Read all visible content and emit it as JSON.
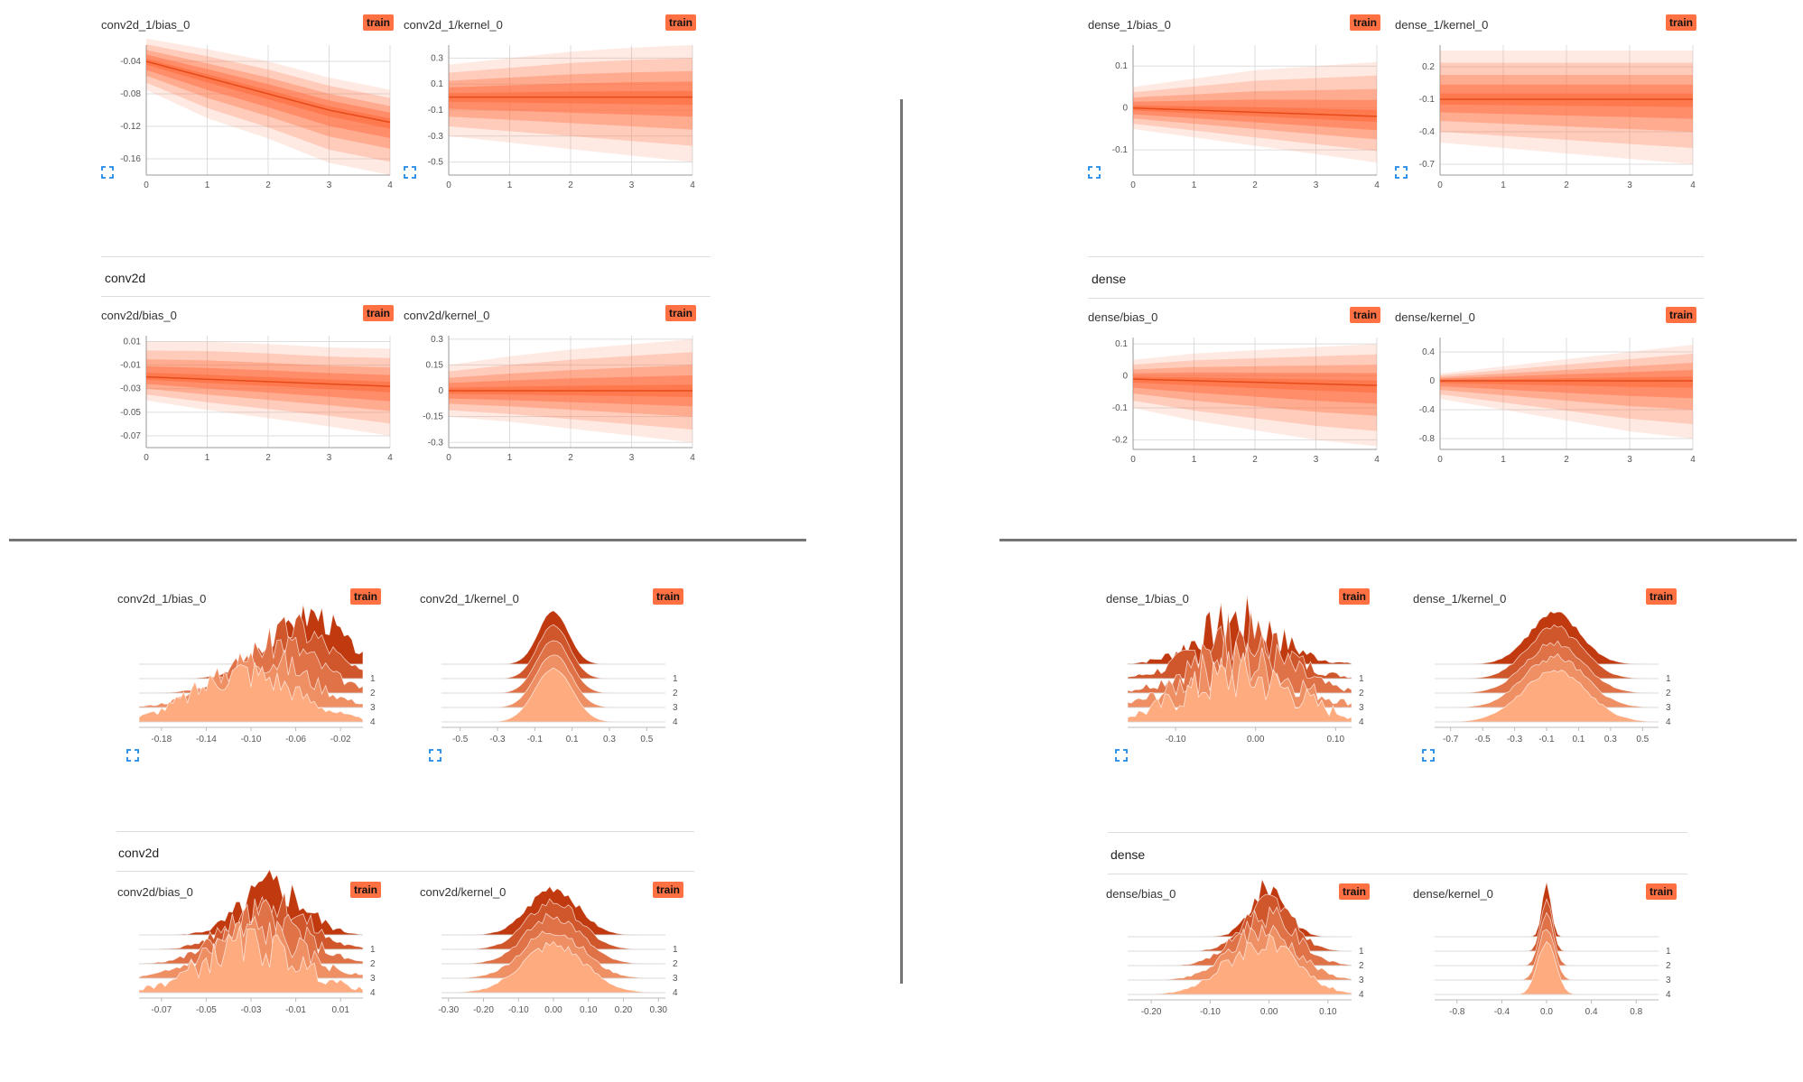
{
  "badge_label": "train",
  "colors": {
    "accent": "#ff7043",
    "dist_fill": "#ff7043",
    "hist_dark": "#c0390f",
    "hist_light": "#ffab80",
    "grid": "#dddddd",
    "tick": "#555555",
    "divider": "#757575"
  },
  "icons": {
    "expand": "fullscreen-expand-icon"
  },
  "sections": {
    "conv2d": "conv2d",
    "dense": "dense"
  },
  "distributions": [
    {
      "title": "conv2d_1/bias_0",
      "y_ticks": [
        "-0.04",
        "-0.08",
        "-0.12",
        "-0.16"
      ],
      "x_ticks": [
        "0",
        "1",
        "2",
        "3",
        "4"
      ],
      "chart_data": {
        "type": "area",
        "x": [
          0,
          1,
          2,
          3,
          4
        ],
        "ylim": [
          -0.18,
          -0.02
        ],
        "median": [
          -0.04,
          -0.06,
          -0.08,
          -0.1,
          -0.115
        ],
        "bands": [
          [
            -0.075,
            -0.012
          ],
          [
            -0.11,
            -0.025
          ],
          [
            -0.135,
            -0.04
          ],
          [
            -0.165,
            -0.06
          ],
          [
            -0.18,
            -0.075
          ]
        ]
      }
    },
    {
      "title": "conv2d_1/kernel_0",
      "y_ticks": [
        "0.3",
        "0.1",
        "-0.1",
        "-0.3",
        "-0.5"
      ],
      "x_ticks": [
        "0",
        "1",
        "2",
        "3",
        "4"
      ],
      "chart_data": {
        "type": "area",
        "x": [
          0,
          1,
          2,
          3,
          4
        ],
        "ylim": [
          -0.6,
          0.4
        ],
        "median": [
          0.0,
          0.0,
          0.0,
          0.0,
          0.0
        ],
        "bands": [
          [
            -0.3,
            0.25
          ],
          [
            -0.35,
            0.3
          ],
          [
            -0.4,
            0.35
          ],
          [
            -0.45,
            0.38
          ],
          [
            -0.5,
            0.4
          ]
        ]
      }
    },
    {
      "title": "conv2d/bias_0",
      "y_ticks": [
        "0.01",
        "-0.01",
        "-0.03",
        "-0.05",
        "-0.07"
      ],
      "x_ticks": [
        "0",
        "1",
        "2",
        "3",
        "4"
      ],
      "chart_data": {
        "type": "area",
        "x": [
          0,
          1,
          2,
          3,
          4
        ],
        "ylim": [
          -0.08,
          0.015
        ],
        "median": [
          -0.02,
          -0.022,
          -0.024,
          -0.026,
          -0.028
        ],
        "bands": [
          [
            -0.04,
            0.01
          ],
          [
            -0.048,
            0.01
          ],
          [
            -0.055,
            0.008
          ],
          [
            -0.062,
            0.005
          ],
          [
            -0.07,
            0.004
          ]
        ]
      }
    },
    {
      "title": "conv2d/kernel_0",
      "y_ticks": [
        "0.3",
        "0.15",
        "0",
        "-0.15",
        "-0.3"
      ],
      "x_ticks": [
        "0",
        "1",
        "2",
        "3",
        "4"
      ],
      "chart_data": {
        "type": "area",
        "x": [
          0,
          1,
          2,
          3,
          4
        ],
        "ylim": [
          -0.33,
          0.32
        ],
        "median": [
          0.0,
          0.0,
          0.0,
          0.0,
          0.0
        ],
        "bands": [
          [
            -0.15,
            0.15
          ],
          [
            -0.18,
            0.2
          ],
          [
            -0.22,
            0.24
          ],
          [
            -0.26,
            0.27
          ],
          [
            -0.3,
            0.3
          ]
        ]
      }
    },
    {
      "title": "dense_1/bias_0",
      "y_ticks": [
        "0.1",
        "0",
        "-0.1"
      ],
      "x_ticks": [
        "0",
        "1",
        "2",
        "3",
        "4"
      ],
      "chart_data": {
        "type": "area",
        "x": [
          0,
          1,
          2,
          3,
          4
        ],
        "ylim": [
          -0.16,
          0.15
        ],
        "median": [
          0.0,
          -0.005,
          -0.01,
          -0.015,
          -0.02
        ],
        "bands": [
          [
            -0.05,
            0.05
          ],
          [
            -0.07,
            0.07
          ],
          [
            -0.09,
            0.09
          ],
          [
            -0.11,
            0.1
          ],
          [
            -0.13,
            0.11
          ]
        ]
      }
    },
    {
      "title": "dense_1/kernel_0",
      "y_ticks": [
        "0.2",
        "-0.1",
        "-0.4",
        "-0.7"
      ],
      "x_ticks": [
        "0",
        "1",
        "2",
        "3",
        "4"
      ],
      "chart_data": {
        "type": "area",
        "x": [
          0,
          1,
          2,
          3,
          4
        ],
        "ylim": [
          -0.8,
          0.4
        ],
        "median": [
          -0.1,
          -0.1,
          -0.1,
          -0.1,
          -0.1
        ],
        "bands": [
          [
            -0.5,
            0.35
          ],
          [
            -0.55,
            0.35
          ],
          [
            -0.6,
            0.35
          ],
          [
            -0.65,
            0.35
          ],
          [
            -0.7,
            0.35
          ]
        ]
      }
    },
    {
      "title": "dense/bias_0",
      "y_ticks": [
        "0.1",
        "0",
        "-0.1",
        "-0.2"
      ],
      "x_ticks": [
        "0",
        "1",
        "2",
        "3",
        "4"
      ],
      "chart_data": {
        "type": "area",
        "x": [
          0,
          1,
          2,
          3,
          4
        ],
        "ylim": [
          -0.23,
          0.12
        ],
        "median": [
          -0.01,
          -0.015,
          -0.02,
          -0.025,
          -0.03
        ],
        "bands": [
          [
            -0.1,
            0.05
          ],
          [
            -0.14,
            0.07
          ],
          [
            -0.17,
            0.08
          ],
          [
            -0.2,
            0.09
          ],
          [
            -0.22,
            0.1
          ]
        ]
      }
    },
    {
      "title": "dense/kernel_0",
      "y_ticks": [
        "0.4",
        "0",
        "-0.4",
        "-0.8"
      ],
      "x_ticks": [
        "0",
        "1",
        "2",
        "3",
        "4"
      ],
      "chart_data": {
        "type": "area",
        "x": [
          0,
          1,
          2,
          3,
          4
        ],
        "ylim": [
          -0.95,
          0.6
        ],
        "median": [
          0.0,
          0.0,
          0.0,
          0.0,
          0.0
        ],
        "bands": [
          [
            -0.25,
            0.1
          ],
          [
            -0.4,
            0.2
          ],
          [
            -0.55,
            0.3
          ],
          [
            -0.7,
            0.4
          ],
          [
            -0.8,
            0.5
          ]
        ]
      }
    }
  ],
  "histograms": [
    {
      "title": "conv2d_1/bias_0",
      "x_ticks": [
        "-0.18",
        "-0.14",
        "-0.10",
        "-0.06",
        "-0.02"
      ],
      "step_labels": [
        "1",
        "2",
        "3",
        "4"
      ],
      "chart_data": {
        "type": "area",
        "steps": [
          0,
          1,
          2,
          3,
          4
        ],
        "xlim": [
          -0.2,
          0.0
        ],
        "centers": [
          -0.045,
          -0.06,
          -0.075,
          -0.09,
          -0.105
        ],
        "widths": [
          0.025,
          0.03,
          0.035,
          0.04,
          0.045
        ],
        "peak": 0.9,
        "jagged": 0.35
      }
    },
    {
      "title": "conv2d_1/kernel_0",
      "x_ticks": [
        "-0.5",
        "-0.3",
        "-0.1",
        "0.1",
        "0.3",
        "0.5"
      ],
      "step_labels": [
        "1",
        "2",
        "3",
        "4"
      ],
      "chart_data": {
        "type": "area",
        "steps": [
          0,
          1,
          2,
          3,
          4
        ],
        "xlim": [
          -0.6,
          0.6
        ],
        "centers": [
          0,
          0,
          0,
          0,
          0
        ],
        "widths": [
          0.08,
          0.085,
          0.09,
          0.095,
          0.1
        ],
        "peak": 0.95,
        "jagged": 0.02
      }
    },
    {
      "title": "conv2d/bias_0",
      "x_ticks": [
        "-0.07",
        "-0.05",
        "-0.03",
        "-0.01",
        "0.01"
      ],
      "step_labels": [
        "1",
        "2",
        "3",
        "4"
      ],
      "chart_data": {
        "type": "area",
        "steps": [
          0,
          1,
          2,
          3,
          4
        ],
        "xlim": [
          -0.08,
          0.02
        ],
        "centers": [
          -0.02,
          -0.022,
          -0.025,
          -0.028,
          -0.03
        ],
        "widths": [
          0.014,
          0.016,
          0.018,
          0.02,
          0.022
        ],
        "peak": 0.85,
        "jagged": 0.45
      }
    },
    {
      "title": "conv2d/kernel_0",
      "x_ticks": [
        "-0.30",
        "-0.20",
        "-0.10",
        "0.00",
        "0.10",
        "0.20",
        "0.30"
      ],
      "step_labels": [
        "1",
        "2",
        "3",
        "4"
      ],
      "chart_data": {
        "type": "area",
        "steps": [
          0,
          1,
          2,
          3,
          4
        ],
        "xlim": [
          -0.32,
          0.32
        ],
        "centers": [
          0,
          0,
          0,
          0,
          0
        ],
        "widths": [
          0.07,
          0.075,
          0.08,
          0.085,
          0.09
        ],
        "peak": 0.85,
        "jagged": 0.12
      }
    },
    {
      "title": "dense_1/bias_0",
      "x_ticks": [
        "-0.10",
        "0.00",
        "0.10"
      ],
      "step_labels": [
        "1",
        "2",
        "3",
        "4"
      ],
      "chart_data": {
        "type": "area",
        "steps": [
          0,
          1,
          2,
          3,
          4
        ],
        "xlim": [
          -0.16,
          0.12
        ],
        "centers": [
          -0.02,
          -0.02,
          -0.02,
          -0.02,
          -0.02
        ],
        "widths": [
          0.05,
          0.055,
          0.06,
          0.065,
          0.07
        ],
        "peak": 0.8,
        "jagged": 0.6
      }
    },
    {
      "title": "dense_1/kernel_0",
      "x_ticks": [
        "-0.7",
        "-0.5",
        "-0.3",
        "-0.1",
        "0.1",
        "0.3",
        "0.5"
      ],
      "step_labels": [
        "1",
        "2",
        "3",
        "4"
      ],
      "chart_data": {
        "type": "area",
        "steps": [
          0,
          1,
          2,
          3,
          4
        ],
        "xlim": [
          -0.8,
          0.6
        ],
        "centers": [
          -0.05,
          -0.05,
          -0.05,
          -0.05,
          -0.05
        ],
        "widths": [
          0.16,
          0.17,
          0.18,
          0.19,
          0.2
        ],
        "peak": 0.9,
        "jagged": 0.08
      }
    },
    {
      "title": "dense/bias_0",
      "x_ticks": [
        "-0.20",
        "-0.10",
        "0.00",
        "0.10"
      ],
      "step_labels": [
        "1",
        "2",
        "3",
        "4"
      ],
      "chart_data": {
        "type": "area",
        "steps": [
          0,
          1,
          2,
          3,
          4
        ],
        "xlim": [
          -0.24,
          0.14
        ],
        "centers": [
          0.0,
          0.0,
          -0.005,
          -0.01,
          -0.015
        ],
        "widths": [
          0.03,
          0.04,
          0.05,
          0.055,
          0.06
        ],
        "peak": 0.9,
        "jagged": 0.25
      }
    },
    {
      "title": "dense/kernel_0",
      "x_ticks": [
        "-0.8",
        "-0.4",
        "0.0",
        "0.4",
        "0.8"
      ],
      "step_labels": [
        "1",
        "2",
        "3",
        "4"
      ],
      "chart_data": {
        "type": "area",
        "steps": [
          0,
          1,
          2,
          3,
          4
        ],
        "xlim": [
          -1.0,
          1.0
        ],
        "centers": [
          0,
          0,
          0,
          0,
          0
        ],
        "widths": [
          0.04,
          0.05,
          0.06,
          0.07,
          0.08
        ],
        "peak": 0.95,
        "jagged": 0.05
      }
    }
  ]
}
